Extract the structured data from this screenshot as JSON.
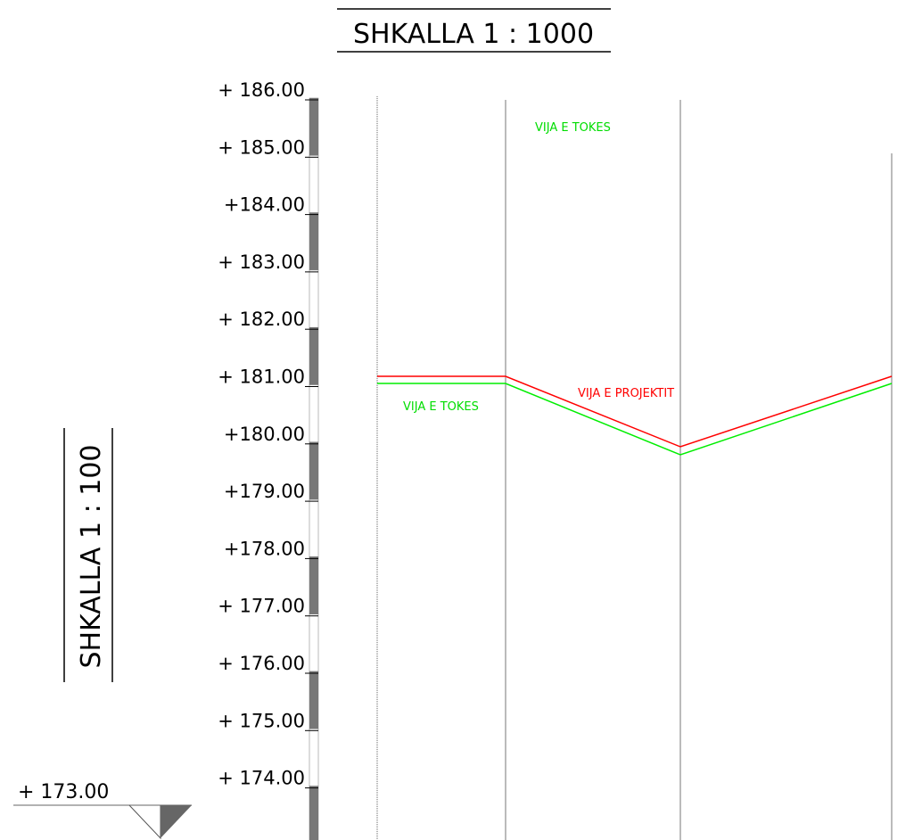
{
  "title": "SHKALLA 1 : 1000",
  "vertical_scale": "SHKALLA 1 : 100",
  "elevations": [
    "+ 186.00",
    "+ 185.00",
    "+184.00",
    "+ 183.00",
    "+ 182.00",
    "+ 181.00",
    "+180.00",
    "+179.00",
    "+178.00",
    "+ 177.00",
    "+ 176.00",
    "+ 175.00",
    "+ 174.00"
  ],
  "ground_label_top": "VIJA E TOKES",
  "ground_label": "VIJA E TOKES",
  "project_label": "VIJA E PROJEKTIT",
  "datum": "+ 173.00"
}
